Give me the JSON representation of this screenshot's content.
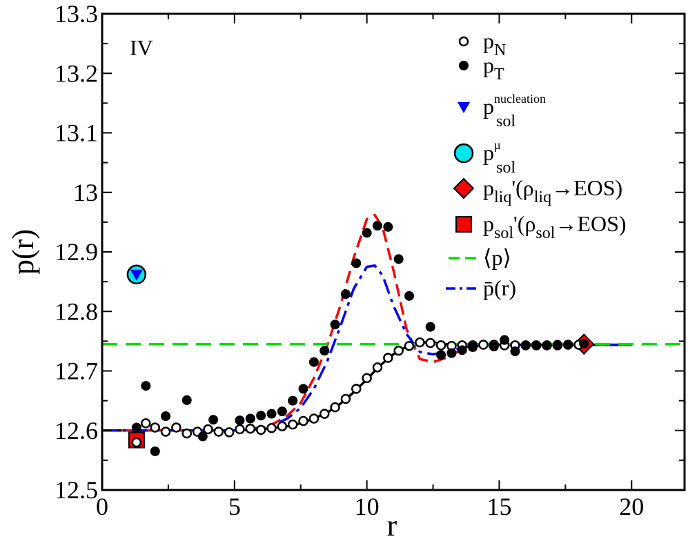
{
  "chart_data": {
    "type": "scatter",
    "panel_label": "IV",
    "xlabel": "r",
    "ylabel": "p(r)",
    "xlim": [
      0,
      22
    ],
    "ylim": [
      12.5,
      13.3
    ],
    "xticks": [
      0,
      5,
      10,
      15,
      20
    ],
    "yticks": [
      12.5,
      12.6,
      12.7,
      12.8,
      12.9,
      13.0,
      13.1,
      13.2,
      13.3
    ],
    "xtick_labels": [
      "0",
      "5",
      "10",
      "15",
      "20"
    ],
    "ytick_labels": [
      "12.5",
      "12.6",
      "12.7",
      "12.8",
      "12.9",
      "13",
      "13.1",
      "13.2",
      "13.3"
    ],
    "legend_position": "top-right",
    "legend": [
      {
        "key": "pN",
        "label": "p",
        "sub": "N",
        "sup": "",
        "tail": "",
        "marker": "open-circle",
        "color": "#000000"
      },
      {
        "key": "pT",
        "label": "p",
        "sub": "T",
        "sup": "",
        "tail": "",
        "marker": "filled-circle",
        "color": "#000000"
      },
      {
        "key": "psol_nuc",
        "label": "p",
        "sub": "sol",
        "sup": "nucleation",
        "tail": "",
        "marker": "triangle-down",
        "color": "#0000ff"
      },
      {
        "key": "psol_mu",
        "label": "p",
        "sub": "sol",
        "sup": "μ",
        "tail": "",
        "marker": "big-circle",
        "color": "#00e5ee"
      },
      {
        "key": "pliq",
        "label": "p",
        "sub": "liq",
        "sup": "",
        "tail": "'(ρ",
        "tail_sub": "liq",
        "tail2": "→EOS)",
        "marker": "diamond",
        "color": "#ff0000"
      },
      {
        "key": "psol",
        "label": "p",
        "sub": "sol",
        "sup": "",
        "tail": "'(ρ",
        "tail_sub": "sol",
        "tail2": "→EOS)",
        "marker": "square",
        "color": "#ff0000"
      },
      {
        "key": "pavg",
        "label": "⟨p⟩",
        "sub": "",
        "sup": "",
        "tail": "",
        "marker": "green-dash",
        "color": "#00dd00"
      },
      {
        "key": "pbar",
        "label": "p̄(r)",
        "sub": "",
        "sup": "",
        "tail": "",
        "marker": "blue-dashdot",
        "color": "#0000ff"
      }
    ],
    "series": [
      {
        "name": "pN",
        "style": "open-circle",
        "x": [
          1.3,
          1.65,
          2.0,
          2.4,
          2.8,
          3.2,
          3.6,
          4.0,
          4.4,
          4.8,
          5.2,
          5.6,
          6.0,
          6.4,
          6.8,
          7.2,
          7.6,
          8.0,
          8.4,
          8.8,
          9.2,
          9.6,
          10.0,
          10.4,
          10.8,
          11.2,
          11.6,
          12.0,
          12.4,
          12.8,
          13.2,
          13.6,
          14.0,
          14.4,
          14.8,
          15.2,
          15.6,
          16.0,
          16.4,
          16.8,
          17.2,
          17.6,
          18.0
        ],
        "y": [
          12.58,
          12.612,
          12.605,
          12.598,
          12.605,
          12.595,
          12.598,
          12.602,
          12.598,
          12.597,
          12.602,
          12.603,
          12.601,
          12.604,
          12.607,
          12.61,
          12.616,
          12.62,
          12.628,
          12.639,
          12.653,
          12.67,
          12.688,
          12.706,
          12.722,
          12.734,
          12.742,
          12.748,
          12.747,
          12.743,
          12.742,
          12.743,
          12.743,
          12.744,
          12.744,
          12.743,
          12.743,
          12.743,
          12.743,
          12.743,
          12.743,
          12.744,
          12.744
        ]
      },
      {
        "name": "pT",
        "style": "filled-circle",
        "x": [
          1.3,
          1.65,
          2.0,
          2.4,
          3.2,
          3.8,
          4.2,
          5.2,
          5.6,
          6.0,
          6.4,
          6.8,
          7.2,
          7.6,
          8.0,
          8.4,
          8.8,
          9.2,
          9.6,
          10.0,
          10.4,
          10.8,
          11.2,
          11.6,
          12.4,
          12.8,
          13.2,
          13.6,
          14.0,
          14.8,
          15.2,
          15.6,
          16.0,
          16.4,
          16.8,
          17.2,
          17.6,
          18.2
        ],
        "y": [
          12.605,
          12.675,
          12.565,
          12.624,
          12.651,
          12.59,
          12.618,
          12.617,
          12.62,
          12.625,
          12.628,
          12.632,
          12.65,
          12.67,
          12.715,
          12.734,
          12.778,
          12.829,
          12.881,
          12.932,
          12.944,
          12.942,
          12.888,
          12.826,
          12.774,
          12.727,
          12.73,
          12.735,
          12.74,
          12.741,
          12.752,
          12.733,
          12.743,
          12.743,
          12.743,
          12.744,
          12.744,
          12.746
        ]
      },
      {
        "name": "psol_nuc",
        "style": "triangle-down",
        "x": [
          1.3
        ],
        "y": [
          12.862
        ]
      },
      {
        "name": "psol_mu",
        "style": "big-circle",
        "x": [
          1.3
        ],
        "y": [
          12.862
        ]
      },
      {
        "name": "pliq",
        "style": "diamond",
        "x": [
          18.2
        ],
        "y": [
          12.745
        ]
      },
      {
        "name": "psol",
        "style": "square",
        "x": [
          1.3
        ],
        "y": [
          12.584
        ]
      },
      {
        "name": "pavg",
        "style": "green-dash",
        "value": 12.745
      },
      {
        "name": "fit_pN",
        "style": "black-line",
        "x": [
          0,
          1,
          2,
          3,
          4,
          5,
          6,
          7,
          7.5,
          8,
          8.5,
          9,
          9.5,
          10,
          10.5,
          11,
          11.5,
          12,
          12.5,
          13,
          14,
          15,
          16,
          17,
          18,
          19,
          20
        ],
        "y": [
          12.6,
          12.6,
          12.6,
          12.6,
          12.6,
          12.6,
          12.602,
          12.607,
          12.612,
          12.62,
          12.63,
          12.645,
          12.664,
          12.686,
          12.709,
          12.728,
          12.741,
          12.748,
          12.748,
          12.745,
          12.744,
          12.744,
          12.744,
          12.744,
          12.744,
          12.744,
          12.744
        ]
      },
      {
        "name": "fit_pT",
        "style": "red-dash",
        "x": [
          0,
          1,
          2,
          3,
          4,
          5,
          6,
          6.5,
          7,
          7.5,
          8,
          8.5,
          9,
          9.5,
          10,
          10.3,
          10.6,
          11,
          11.5,
          12,
          12.5,
          13,
          13.5,
          14,
          15,
          16,
          17,
          18,
          19,
          20
        ],
        "y": [
          12.6,
          12.6,
          12.6,
          12.6,
          12.6,
          12.6,
          12.605,
          12.612,
          12.625,
          12.646,
          12.688,
          12.742,
          12.81,
          12.89,
          12.955,
          12.962,
          12.94,
          12.87,
          12.77,
          12.72,
          12.715,
          12.722,
          12.734,
          12.742,
          12.745,
          12.744,
          12.744,
          12.744,
          12.744,
          12.744
        ]
      },
      {
        "name": "pbar",
        "style": "blue-dashdot",
        "x": [
          0,
          1,
          2,
          3,
          4,
          5,
          6,
          6.5,
          7,
          7.5,
          8,
          8.5,
          9,
          9.5,
          10,
          10.3,
          10.6,
          11,
          11.5,
          12,
          12.5,
          13,
          13.5,
          14,
          15,
          16,
          17,
          18,
          19,
          20
        ],
        "y": [
          12.6,
          12.6,
          12.6,
          12.6,
          12.6,
          12.6,
          12.603,
          12.61,
          12.62,
          12.638,
          12.67,
          12.716,
          12.775,
          12.838,
          12.875,
          12.877,
          12.86,
          12.81,
          12.762,
          12.732,
          12.728,
          12.732,
          12.738,
          12.742,
          12.744,
          12.744,
          12.744,
          12.744,
          12.744,
          12.744
        ]
      }
    ]
  }
}
